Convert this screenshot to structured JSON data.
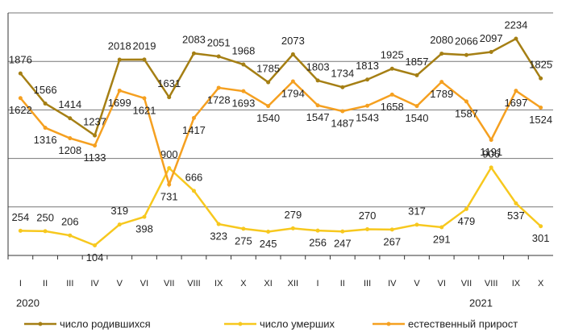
{
  "chart_data": {
    "type": "line",
    "categories": [
      "I",
      "II",
      "III",
      "IV",
      "V",
      "VI",
      "VII",
      "VIII",
      "IX",
      "X",
      "XI",
      "XII",
      "I",
      "II",
      "III",
      "IV",
      "V",
      "VI",
      "VII",
      "VIII",
      "IX",
      "X"
    ],
    "years": [
      "2020",
      "2021"
    ],
    "series": [
      {
        "name": "число родившихся",
        "color": "#a57f14",
        "values": [
          1876,
          1566,
          1414,
          1237,
          2018,
          2019,
          1631,
          2083,
          2051,
          1968,
          1785,
          2073,
          1803,
          1734,
          1813,
          1925,
          1857,
          2080,
          2066,
          2097,
          2234,
          1825
        ]
      },
      {
        "name": "число умерших",
        "color": "#f7c81e",
        "values": [
          254,
          250,
          206,
          104,
          319,
          398,
          900,
          666,
          323,
          275,
          245,
          279,
          256,
          247,
          270,
          267,
          317,
          291,
          479,
          906,
          537,
          301
        ]
      },
      {
        "name": "естественный прирост",
        "color": "#f5a020",
        "values": [
          1622,
          1316,
          1208,
          1133,
          1699,
          1621,
          731,
          1417,
          1728,
          1693,
          1540,
          1794,
          1547,
          1487,
          1543,
          1658,
          1540,
          1789,
          1587,
          1191,
          1697,
          1524
        ]
      }
    ],
    "ylim": [
      0,
      2500
    ],
    "yticks": [
      0,
      500,
      1000,
      1500,
      2000,
      2500
    ],
    "grid": true
  }
}
